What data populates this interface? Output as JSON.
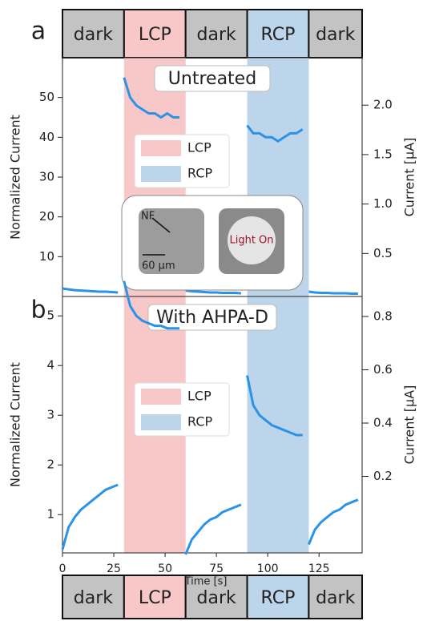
{
  "phases": [
    {
      "label": "dark",
      "start": 0,
      "end": 30,
      "color": "#c3c3c3"
    },
    {
      "label": "LCP",
      "start": 30,
      "end": 60,
      "color": "#f8c8c8"
    },
    {
      "label": "dark",
      "start": 60,
      "end": 90,
      "color": "#c3c3c3"
    },
    {
      "label": "RCP",
      "start": 90,
      "end": 120,
      "color": "#bcd5ea"
    },
    {
      "label": "dark",
      "start": 120,
      "end": 146,
      "color": "#c3c3c3"
    }
  ],
  "chart_data": [
    {
      "type": "line",
      "panel_label": "a",
      "title": "Untreated",
      "ylabel": "Normalized Current",
      "y2label": "Current [µA]",
      "xlim": [
        0,
        146
      ],
      "ylim": [
        0,
        60
      ],
      "yticks": [
        10,
        20,
        30,
        40,
        50
      ],
      "y2lim": [
        0.065,
        2.48
      ],
      "y2ticks": [
        0.5,
        {
          "value": 1,
          "label": "1.0"
        },
        1.5,
        {
          "value": 2,
          "label": "2.0"
        }
      ],
      "regions": [
        {
          "name": "LCP",
          "color": "#f8c8c8",
          "start": 30,
          "end": 60
        },
        {
          "name": "RCP",
          "color": "#bcd5ea",
          "start": 90,
          "end": 120
        }
      ],
      "legend": "center-left",
      "inset": {
        "labels": [
          "NF",
          "60 µm",
          "Light On"
        ]
      },
      "series": [
        {
          "color": "#2a93e8",
          "x": [
            0,
            3,
            6,
            9,
            12,
            15,
            18,
            21,
            24,
            27,
            28.5,
            30,
            33,
            36,
            39,
            42,
            45,
            48,
            51,
            54,
            57,
            58.5,
            60,
            63,
            66,
            69,
            72,
            75,
            78,
            81,
            84,
            87,
            88.5,
            90,
            93,
            96,
            99,
            102,
            105,
            108,
            111,
            114,
            117,
            118.5,
            120,
            123,
            126,
            129,
            132,
            135,
            138,
            141,
            144
          ],
          "values": [
            2.0,
            1.8,
            1.6,
            1.5,
            1.4,
            1.3,
            1.2,
            1.2,
            1.1,
            1.0,
            null,
            55,
            50,
            48,
            47,
            46,
            46,
            45,
            46,
            45,
            45,
            null,
            1.5,
            1.3,
            1.2,
            1.1,
            1.0,
            1.0,
            0.9,
            0.9,
            0.9,
            0.8,
            null,
            43,
            41,
            41,
            40,
            40,
            39,
            40,
            41,
            41,
            42,
            null,
            1.2,
            1.0,
            0.9,
            0.9,
            0.8,
            0.8,
            0.8,
            0.7,
            0.7
          ]
        }
      ]
    },
    {
      "type": "line",
      "panel_label": "b",
      "title": "With AHPA-D",
      "ylabel": "Normalized Current",
      "y2label": "Current [µA]",
      "xlabel": "Time [s]",
      "xlim": [
        0,
        146
      ],
      "xticks": [
        0,
        25,
        50,
        75,
        100,
        125
      ],
      "ylim": [
        0.23,
        5.39
      ],
      "yticks": [
        1,
        2,
        3,
        4,
        5
      ],
      "y2lim": [
        -0.087,
        0.875
      ],
      "y2ticks": [
        0.2,
        0.4,
        0.6,
        0.8
      ],
      "regions": [
        {
          "name": "LCP",
          "color": "#f8c8c8",
          "start": 30,
          "end": 60
        },
        {
          "name": "RCP",
          "color": "#bcd5ea",
          "start": 90,
          "end": 120
        }
      ],
      "legend": "center-left",
      "series": [
        {
          "color": "#2a93e8",
          "x": [
            0,
            3,
            6,
            9,
            12,
            15,
            18,
            21,
            24,
            27,
            28.5,
            30,
            33,
            36,
            39,
            42,
            45,
            48,
            51,
            54,
            57,
            58.5,
            60,
            63,
            66,
            69,
            72,
            75,
            78,
            81,
            84,
            87,
            88.5,
            90,
            93,
            96,
            99,
            102,
            105,
            108,
            111,
            114,
            117,
            118.5,
            120,
            123,
            126,
            129,
            132,
            135,
            138,
            141,
            144
          ],
          "values": [
            0.3,
            0.75,
            0.95,
            1.1,
            1.2,
            1.3,
            1.4,
            1.5,
            1.55,
            1.6,
            null,
            5.7,
            5.2,
            5.0,
            4.9,
            4.85,
            4.8,
            4.8,
            4.75,
            4.75,
            4.75,
            null,
            0.2,
            0.5,
            0.65,
            0.8,
            0.9,
            0.95,
            1.05,
            1.1,
            1.15,
            1.2,
            null,
            3.8,
            3.2,
            3.0,
            2.9,
            2.8,
            2.75,
            2.7,
            2.65,
            2.6,
            2.6,
            null,
            0.4,
            0.7,
            0.85,
            0.95,
            1.05,
            1.1,
            1.2,
            1.25,
            1.3
          ]
        }
      ]
    }
  ]
}
